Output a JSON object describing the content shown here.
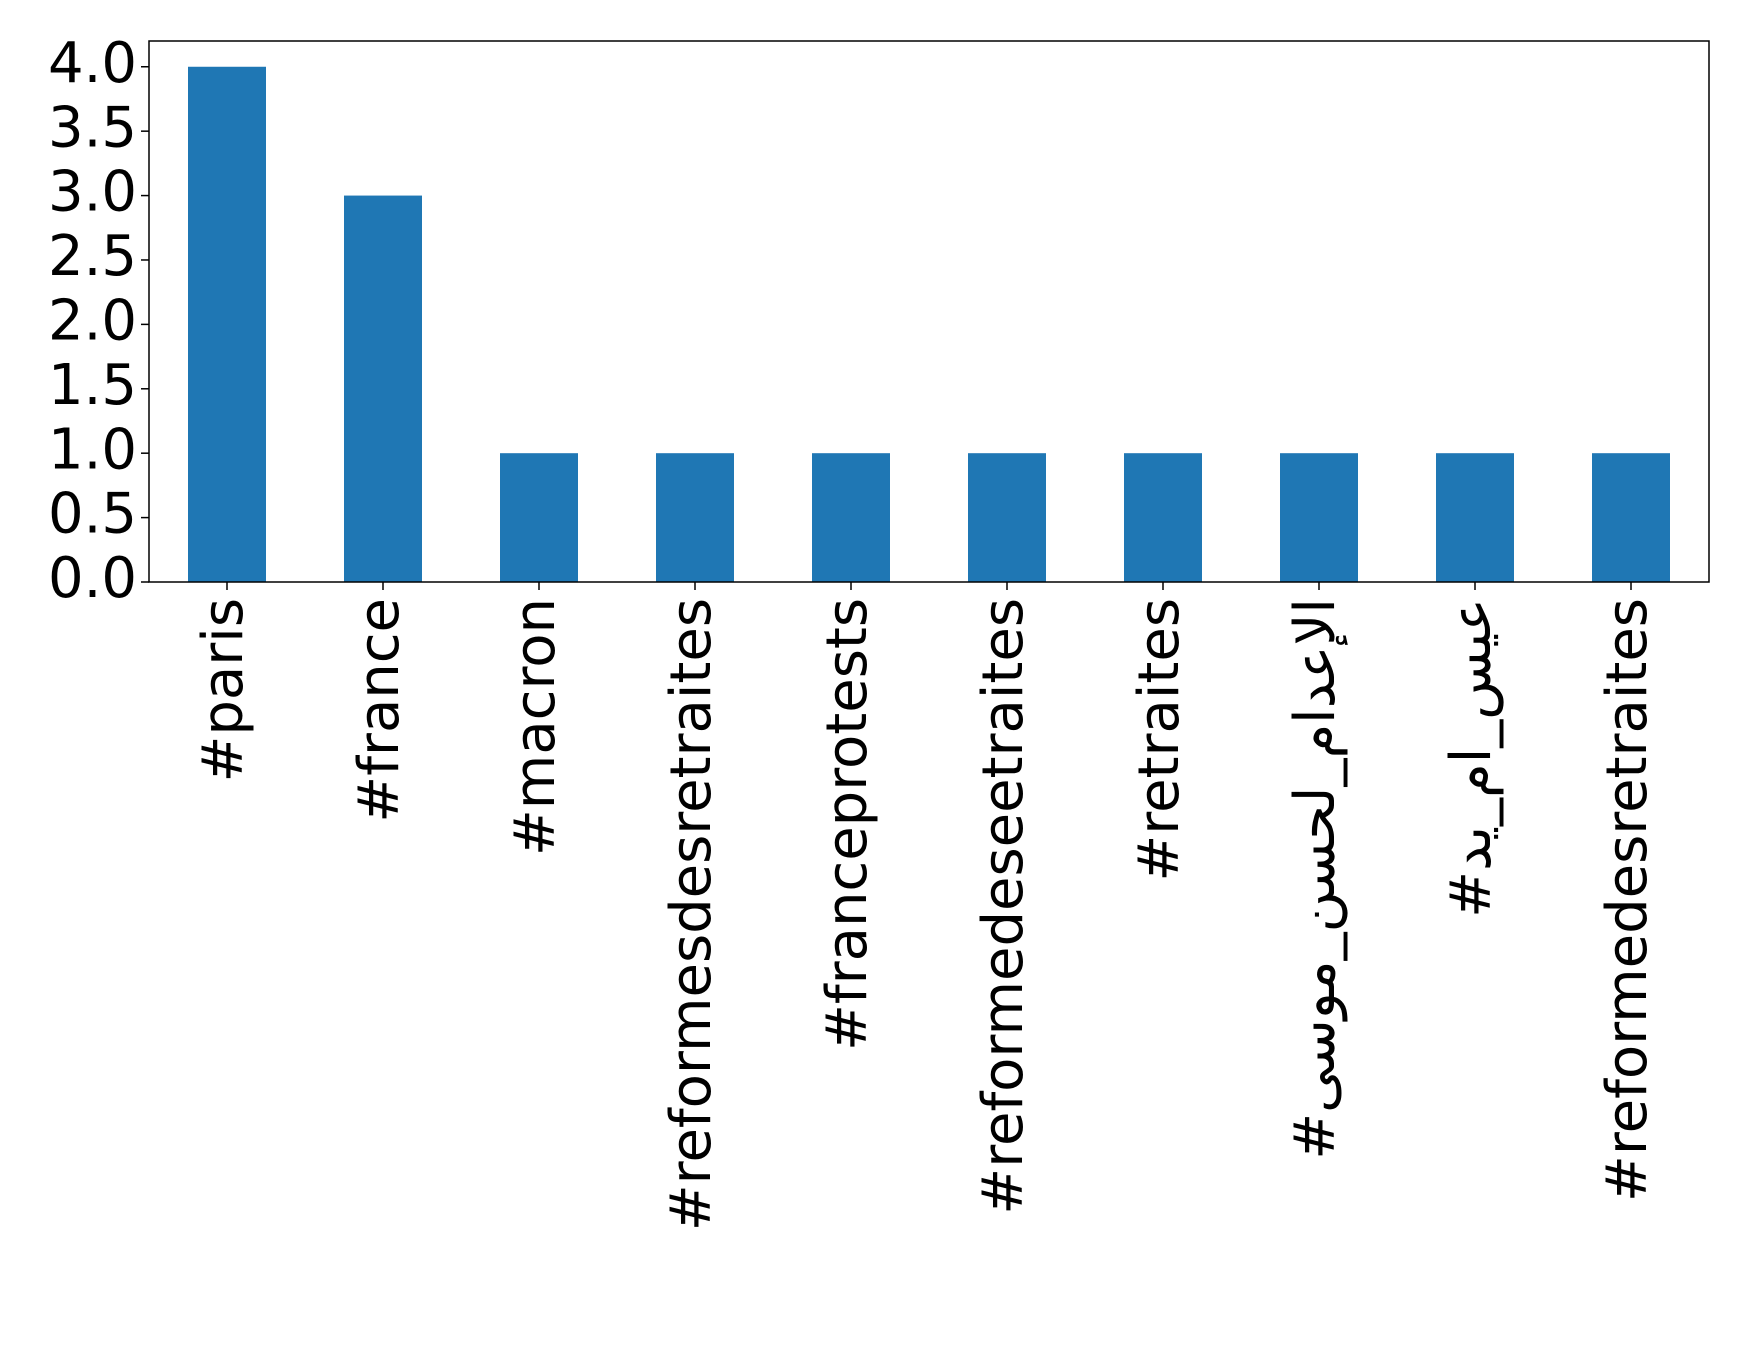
{
  "chart_data": {
    "type": "bar",
    "categories": [
      "#paris",
      "#france",
      "#macron",
      "#reformesdesretraites",
      "#franceprotests",
      "#reformedeseetraites",
      "#retraites",
      "#الإعدام_لحسن_موسى",
      "#عيس_ام_يد",
      "#reformedesretraites"
    ],
    "values": [
      4,
      3,
      1,
      1,
      1,
      1,
      1,
      1,
      1,
      1
    ],
    "color": "#1f77b4",
    "ylim": [
      0,
      4.2
    ],
    "yticks": [
      {
        "value": 0,
        "label": "0.0"
      },
      {
        "value": 0.5,
        "label": "0.5"
      },
      {
        "value": 1,
        "label": "1.0"
      },
      {
        "value": 1.5,
        "label": "1.5"
      },
      {
        "value": 2,
        "label": "2.0"
      },
      {
        "value": 2.5,
        "label": "2.5"
      },
      {
        "value": 3,
        "label": "3.0"
      },
      {
        "value": 3.5,
        "label": "3.5"
      },
      {
        "value": 4,
        "label": "4.0"
      }
    ],
    "grid": false
  }
}
